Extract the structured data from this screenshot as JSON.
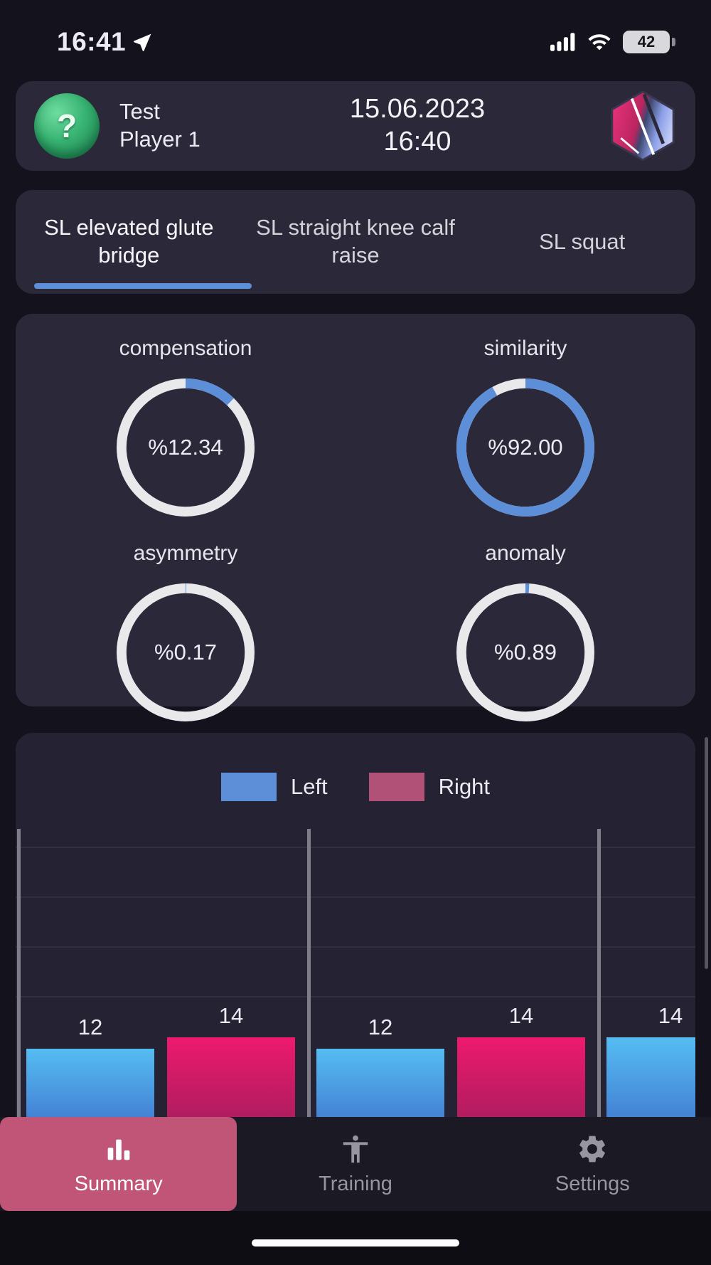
{
  "status_bar": {
    "time": "16:41",
    "battery_level": "42"
  },
  "header": {
    "player_name": "Test Player 1",
    "session_date": "15.06.2023",
    "session_time": "16:40"
  },
  "tabs": [
    {
      "label": "SL elevated glute bridge",
      "active": true
    },
    {
      "label": "SL straight knee calf raise",
      "active": false
    },
    {
      "label": "SL squat",
      "active": false
    }
  ],
  "metrics": [
    {
      "label": "compensation",
      "value": "%12.34",
      "percent": 12.34
    },
    {
      "label": "similarity",
      "value": "%92.00",
      "percent": 92.0
    },
    {
      "label": "asymmetry",
      "value": "%0.17",
      "percent": 0.17
    },
    {
      "label": "anomaly",
      "value": "%0.89",
      "percent": 0.89
    }
  ],
  "chart_data": {
    "type": "bar",
    "title": "",
    "categories": [
      "",
      "",
      ""
    ],
    "series": [
      {
        "name": "Left",
        "values": [
          12,
          12,
          14
        ]
      },
      {
        "name": "Right",
        "values": [
          14,
          14,
          null
        ]
      }
    ],
    "bar_labels_shown": true,
    "ylim": [
      0,
      50
    ],
    "grid": true,
    "legend_position": "top-center",
    "legend": [
      {
        "label": "Left",
        "color": "#5d8ed8"
      },
      {
        "label": "Right",
        "color": "#b25178"
      }
    ]
  },
  "bottom_nav": {
    "items": [
      {
        "label": "Summary",
        "icon": "bar-chart-icon",
        "active": true
      },
      {
        "label": "Training",
        "icon": "person-icon",
        "active": false
      },
      {
        "label": "Settings",
        "icon": "gear-icon",
        "active": false
      }
    ]
  },
  "colors": {
    "accent_blue": "#5d8ed8",
    "ring_white": "#e9e9ec",
    "bar_left_top": "#55bdf2",
    "bar_left_bottom": "#3a5fc4",
    "bar_right_top": "#ee1a6e",
    "bar_right_bottom": "#8c1d57",
    "nav_active_bg": "#c05578",
    "card_bg": "#2b2939",
    "chart_card_bg": "#252333",
    "page_bg": "#14121c"
  }
}
